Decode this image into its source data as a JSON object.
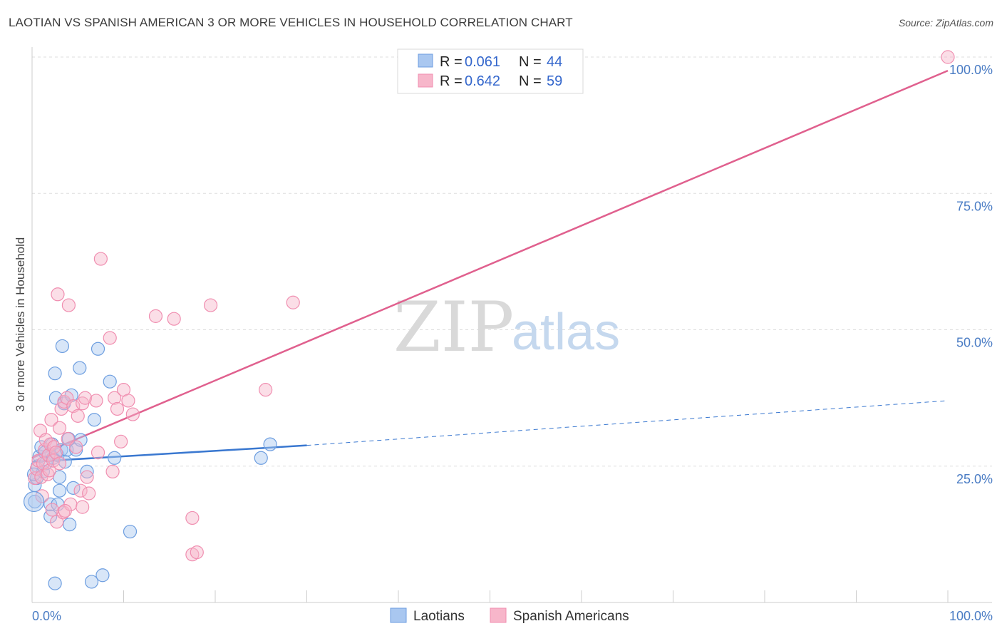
{
  "title": "LAOTIAN VS SPANISH AMERICAN 3 OR MORE VEHICLES IN HOUSEHOLD CORRELATION CHART",
  "source": "Source: ZipAtlas.com",
  "watermark": {
    "zip": "ZIP",
    "atlas": "atlas"
  },
  "legend": {
    "rows": [
      {
        "r_label": "R =",
        "r_value": "0.061",
        "n_label": "N =",
        "n_value": "44",
        "color": "#a9c7f0"
      },
      {
        "r_label": "R =",
        "r_value": "0.642",
        "n_label": "N =",
        "n_value": "59",
        "color": "#f7b6ca"
      }
    ]
  },
  "bottom_legend": [
    {
      "label": "Laotians",
      "color": "#a9c7f0"
    },
    {
      "label": "Spanish Americans",
      "color": "#f7b6ca"
    }
  ],
  "chart_data": {
    "type": "scatter",
    "title": "LAOTIAN VS SPANISH AMERICAN 3 OR MORE VEHICLES IN HOUSEHOLD CORRELATION CHART",
    "xlabel": "",
    "ylabel": "3 or more Vehicles in Household",
    "xlim": [
      0,
      100
    ],
    "ylim": [
      0,
      100
    ],
    "x_tick_labels": [
      "0.0%",
      "100.0%"
    ],
    "y_ticks": [
      25,
      50,
      75,
      100
    ],
    "y_tick_labels": [
      "25.0%",
      "50.0%",
      "75.0%",
      "100.0%"
    ],
    "grid": true,
    "series": [
      {
        "name": "Laotians",
        "color": "#6d9ee0",
        "fill": "#a9c7f0",
        "r": 0.061,
        "n": 44,
        "trend": {
          "x0": 0,
          "y0": 25.8,
          "x1": 30,
          "y1": 28.8,
          "dashed_to_x": 100,
          "dashed_to_y": 37.0,
          "color": "#3a78d0"
        },
        "points": [
          [
            0.3,
            18.5
          ],
          [
            0.3,
            21.5
          ],
          [
            0.5,
            22.8
          ],
          [
            0.6,
            25.0
          ],
          [
            0.8,
            26.8
          ],
          [
            1.0,
            28.5
          ],
          [
            1.2,
            24.0
          ],
          [
            1.4,
            27.5
          ],
          [
            1.5,
            25.5
          ],
          [
            1.8,
            27.0
          ],
          [
            2.0,
            15.8
          ],
          [
            2.0,
            18.0
          ],
          [
            2.2,
            29.0
          ],
          [
            2.3,
            26.5
          ],
          [
            2.5,
            3.5
          ],
          [
            2.5,
            42.0
          ],
          [
            2.6,
            37.5
          ],
          [
            2.8,
            27.0
          ],
          [
            3.0,
            23.0
          ],
          [
            3.0,
            20.5
          ],
          [
            2.8,
            18.0
          ],
          [
            3.2,
            28.0
          ],
          [
            3.3,
            47.0
          ],
          [
            3.5,
            36.5
          ],
          [
            3.6,
            25.8
          ],
          [
            3.8,
            28.0
          ],
          [
            4.0,
            30.0
          ],
          [
            4.1,
            14.3
          ],
          [
            4.3,
            38.0
          ],
          [
            4.5,
            21.0
          ],
          [
            4.8,
            28.0
          ],
          [
            5.2,
            43.0
          ],
          [
            5.3,
            29.8
          ],
          [
            6.0,
            24.0
          ],
          [
            6.5,
            3.8
          ],
          [
            6.8,
            33.5
          ],
          [
            7.2,
            46.5
          ],
          [
            7.7,
            5.0
          ],
          [
            8.5,
            40.5
          ],
          [
            9.0,
            26.5
          ],
          [
            10.7,
            13.0
          ],
          [
            25.0,
            26.5
          ],
          [
            26.0,
            29.0
          ],
          [
            0.2,
            23.5
          ]
        ]
      },
      {
        "name": "Spanish Americans",
        "color": "#f08eb0",
        "fill": "#f7b6ca",
        "r": 0.642,
        "n": 59,
        "trend": {
          "x0": 0,
          "y0": 26.5,
          "x1": 100,
          "y1": 97.5,
          "color": "#e0608e"
        },
        "points": [
          [
            0.3,
            22.8
          ],
          [
            0.5,
            24.5
          ],
          [
            0.7,
            26.0
          ],
          [
            0.9,
            31.5
          ],
          [
            1.0,
            23.0
          ],
          [
            1.2,
            25.5
          ],
          [
            1.4,
            28.0
          ],
          [
            1.5,
            29.8
          ],
          [
            1.7,
            23.5
          ],
          [
            1.8,
            27.0
          ],
          [
            1.9,
            24.2
          ],
          [
            2.0,
            29.0
          ],
          [
            2.1,
            33.5
          ],
          [
            2.3,
            26.0
          ],
          [
            2.4,
            28.5
          ],
          [
            2.6,
            27.5
          ],
          [
            2.7,
            14.8
          ],
          [
            2.8,
            56.5
          ],
          [
            3.0,
            32.0
          ],
          [
            3.0,
            25.5
          ],
          [
            3.2,
            35.5
          ],
          [
            3.4,
            16.5
          ],
          [
            3.5,
            36.8
          ],
          [
            3.8,
            37.5
          ],
          [
            3.9,
            30.0
          ],
          [
            4.0,
            54.5
          ],
          [
            4.2,
            18.0
          ],
          [
            4.5,
            36.0
          ],
          [
            4.8,
            28.5
          ],
          [
            5.0,
            34.2
          ],
          [
            5.3,
            20.5
          ],
          [
            5.5,
            36.5
          ],
          [
            5.5,
            17.5
          ],
          [
            5.8,
            37.5
          ],
          [
            6.0,
            23.0
          ],
          [
            6.2,
            20.0
          ],
          [
            7.0,
            37.0
          ],
          [
            7.2,
            27.5
          ],
          [
            7.5,
            63.0
          ],
          [
            8.5,
            48.5
          ],
          [
            8.8,
            24.0
          ],
          [
            9.0,
            37.5
          ],
          [
            9.3,
            35.5
          ],
          [
            9.7,
            29.5
          ],
          [
            10.0,
            39.0
          ],
          [
            10.5,
            37.0
          ],
          [
            11.0,
            34.5
          ],
          [
            13.5,
            52.5
          ],
          [
            15.5,
            52.0
          ],
          [
            17.5,
            15.5
          ],
          [
            17.5,
            8.8
          ],
          [
            18.0,
            9.2
          ],
          [
            19.5,
            54.5
          ],
          [
            25.5,
            39.0
          ],
          [
            28.5,
            55.0
          ],
          [
            100.0,
            100.0
          ],
          [
            1.1,
            19.5
          ],
          [
            2.2,
            17.0
          ],
          [
            3.6,
            16.8
          ]
        ]
      }
    ]
  }
}
